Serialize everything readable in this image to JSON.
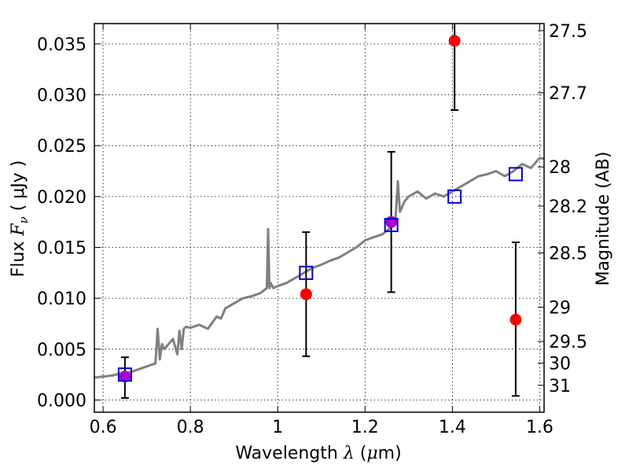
{
  "chart_data": {
    "type": "scatter",
    "xlabel": {
      "prefix": "Wavelength ",
      "symbol": "λ",
      "unit_open": " (",
      "unit_mu": "μ",
      "unit_rest": "m)"
    },
    "ylabel": {
      "prefix": "Flux  ",
      "symbol": "F",
      "sub": "ν",
      "unit": "  ( μJy )"
    },
    "ylabel_right": "Magnitude (AB)",
    "xlim": [
      0.58,
      1.61
    ],
    "ylim": [
      -0.0012,
      0.037
    ],
    "grid": true,
    "x_ticks": [
      {
        "value": 0.6,
        "label": "0.6"
      },
      {
        "value": 0.8,
        "label": "0.8"
      },
      {
        "value": 1.0,
        "label": "1"
      },
      {
        "value": 1.2,
        "label": "1.2"
      },
      {
        "value": 1.4,
        "label": "1.4"
      },
      {
        "value": 1.6,
        "label": "1.6"
      }
    ],
    "y_ticks": [
      {
        "value": 0.0,
        "label": "0.000"
      },
      {
        "value": 0.005,
        "label": "0.005"
      },
      {
        "value": 0.01,
        "label": "0.010"
      },
      {
        "value": 0.015,
        "label": "0.015"
      },
      {
        "value": 0.02,
        "label": "0.020"
      },
      {
        "value": 0.025,
        "label": "0.025"
      },
      {
        "value": 0.03,
        "label": "0.030"
      },
      {
        "value": 0.035,
        "label": "0.035"
      }
    ],
    "mag_ticks": [
      {
        "value": 27.5,
        "label": "27.5"
      },
      {
        "value": 27.7,
        "label": "27.7"
      },
      {
        "value": 28.0,
        "label": "28"
      },
      {
        "value": 28.2,
        "label": "28.2"
      },
      {
        "value": 28.5,
        "label": "28.5"
      },
      {
        "value": 29.0,
        "label": "29"
      },
      {
        "value": 29.5,
        "label": "29.5"
      },
      {
        "value": 30.0,
        "label": "30"
      },
      {
        "value": 31.0,
        "label": "31"
      }
    ],
    "series": [
      {
        "kind": "line",
        "color": "#808080",
        "x": [
          0.58,
          0.6,
          0.62,
          0.64,
          0.66,
          0.68,
          0.7,
          0.72,
          0.725,
          0.73,
          0.735,
          0.74,
          0.76,
          0.77,
          0.775,
          0.78,
          0.785,
          0.79,
          0.8,
          0.82,
          0.84,
          0.86,
          0.87,
          0.88,
          0.9,
          0.92,
          0.94,
          0.96,
          0.975,
          0.978,
          0.981,
          0.984,
          0.99,
          1.0,
          1.02,
          1.04,
          1.06,
          1.08,
          1.1,
          1.12,
          1.14,
          1.16,
          1.18,
          1.2,
          1.22,
          1.24,
          1.26,
          1.27,
          1.275,
          1.28,
          1.285,
          1.29,
          1.3,
          1.32,
          1.34,
          1.36,
          1.38,
          1.4,
          1.42,
          1.44,
          1.46,
          1.48,
          1.5,
          1.52,
          1.54,
          1.56,
          1.58,
          1.6,
          1.61
        ],
        "y": [
          0.0022,
          0.0023,
          0.0024,
          0.0026,
          0.0027,
          0.003,
          0.0033,
          0.0036,
          0.007,
          0.004,
          0.0055,
          0.005,
          0.006,
          0.0045,
          0.0068,
          0.005,
          0.007,
          0.0072,
          0.0071,
          0.0074,
          0.007,
          0.0082,
          0.008,
          0.009,
          0.0095,
          0.01,
          0.0102,
          0.0105,
          0.011,
          0.0168,
          0.011,
          0.0115,
          0.011,
          0.0112,
          0.0115,
          0.012,
          0.0125,
          0.013,
          0.0133,
          0.0137,
          0.014,
          0.0145,
          0.015,
          0.0157,
          0.016,
          0.0163,
          0.017,
          0.018,
          0.0215,
          0.0185,
          0.019,
          0.0195,
          0.02,
          0.0205,
          0.0198,
          0.0203,
          0.02,
          0.0205,
          0.021,
          0.0215,
          0.022,
          0.0222,
          0.0225,
          0.022,
          0.0225,
          0.0232,
          0.0228,
          0.0238,
          0.0237
        ]
      },
      {
        "kind": "errorbar",
        "color": "#ff0000",
        "points": [
          {
            "x": 0.65,
            "y": 0.0023,
            "lo": 0.0002,
            "hi": 0.0042
          },
          {
            "x": 1.065,
            "y": 0.0104,
            "lo": 0.0043,
            "hi": 0.0165
          },
          {
            "x": 1.26,
            "y": 0.0175,
            "lo": 0.0106,
            "hi": 0.0244
          },
          {
            "x": 1.405,
            "y": 0.0353,
            "lo": 0.0285,
            "hi": 0.0372
          },
          {
            "x": 1.545,
            "y": 0.0079,
            "lo": 0.0004,
            "hi": 0.0155
          }
        ]
      },
      {
        "kind": "square",
        "color": "#0000cc",
        "points": [
          {
            "x": 0.65,
            "y": 0.0025
          },
          {
            "x": 1.065,
            "y": 0.0125
          },
          {
            "x": 1.26,
            "y": 0.0172
          },
          {
            "x": 1.405,
            "y": 0.02
          },
          {
            "x": 1.545,
            "y": 0.0222
          }
        ]
      }
    ],
    "overlap_color": "#aa00cc"
  }
}
